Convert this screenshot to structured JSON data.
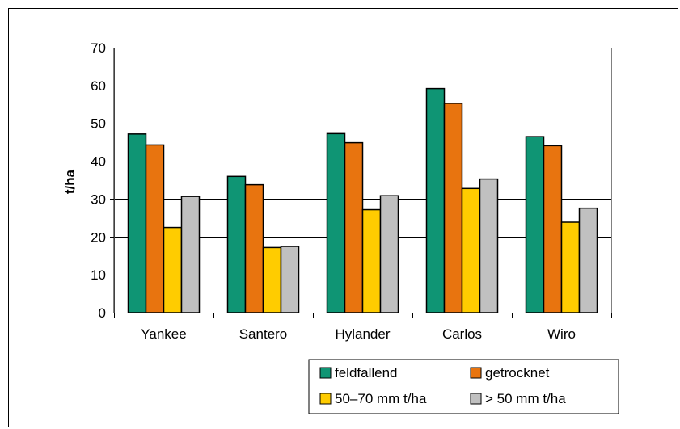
{
  "chart_data": {
    "type": "bar",
    "title": "",
    "xlabel": "",
    "ylabel": "t/ha",
    "ylim": [
      0,
      70
    ],
    "yticks": [
      0,
      10,
      20,
      30,
      40,
      50,
      60,
      70
    ],
    "grid": true,
    "legend_position": "bottom-right",
    "categories": [
      "Yankee",
      "Santero",
      "Hylander",
      "Carlos",
      "Wiro"
    ],
    "series": [
      {
        "name": "feldfallend",
        "color": "#0f9574",
        "values": [
          47.2,
          36.0,
          47.3,
          59.2,
          46.5
        ]
      },
      {
        "name": "getrocknet",
        "color": "#e8740f",
        "values": [
          44.3,
          33.8,
          44.9,
          55.3,
          44.1
        ]
      },
      {
        "name": "50–70 mm t/ha",
        "color": "#ffcc00",
        "values": [
          22.5,
          17.2,
          27.2,
          32.8,
          23.9
        ]
      },
      {
        "name": "> 50 mm t/ha",
        "color": "#c0c0c0",
        "values": [
          30.7,
          17.5,
          30.9,
          35.3,
          27.6
        ]
      }
    ]
  }
}
